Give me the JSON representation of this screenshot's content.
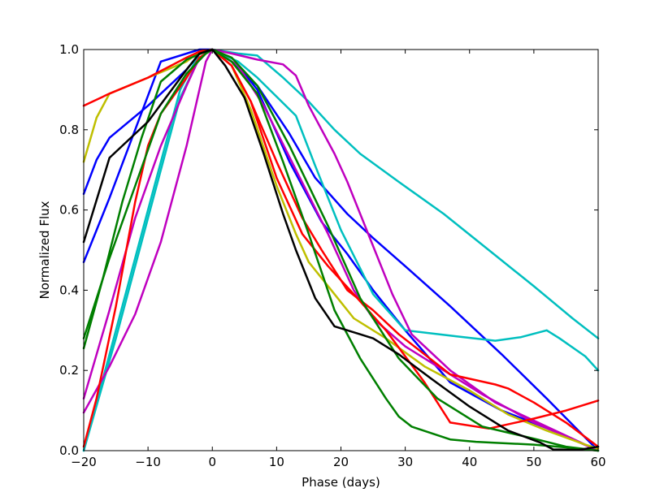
{
  "chart_data": {
    "type": "line",
    "title": "",
    "xlabel": "Phase (days)",
    "ylabel": "Normalized Flux",
    "xlim": [
      -20,
      60
    ],
    "ylim": [
      0.0,
      1.0
    ],
    "grid": false,
    "legend": "none",
    "x_ticks": [
      -20,
      -10,
      0,
      10,
      20,
      30,
      40,
      50,
      60
    ],
    "x_tick_labels": [
      "−20",
      "−10",
      "0",
      "10",
      "20",
      "30",
      "40",
      "50",
      "60"
    ],
    "y_ticks": [
      0.0,
      0.2,
      0.4,
      0.6,
      0.8,
      1.0
    ],
    "y_tick_labels": [
      "0.0",
      "0.2",
      "0.4",
      "0.6",
      "0.8",
      "1.0"
    ],
    "series": [
      {
        "color": "#0000ff",
        "x": [
          -20,
          -16,
          -8,
          -2,
          0,
          4,
          7,
          12,
          17,
          21,
          25,
          30,
          37,
          45,
          53,
          60
        ],
        "y": [
          0.47,
          0.63,
          0.97,
          1.0,
          1.0,
          0.96,
          0.9,
          0.72,
          0.57,
          0.49,
          0.4,
          0.3,
          0.17,
          0.1,
          0.05,
          0.0
        ]
      },
      {
        "color": "#0000ff",
        "x": [
          -20,
          -18,
          -16,
          -10,
          -4,
          -2,
          0,
          3,
          7,
          12,
          16,
          21,
          25,
          30,
          37,
          45,
          52,
          60
        ],
        "y": [
          0.64,
          0.725,
          0.78,
          0.86,
          0.95,
          0.99,
          1.0,
          0.97,
          0.91,
          0.79,
          0.68,
          0.59,
          0.53,
          0.46,
          0.36,
          0.24,
          0.13,
          0.0
        ]
      },
      {
        "color": "#00bfbf",
        "x": [
          -20,
          -15,
          -10,
          -5,
          -2,
          0,
          4,
          7,
          13,
          16,
          20,
          25,
          30,
          38,
          44,
          48,
          52,
          54,
          58,
          60
        ],
        "y": [
          0.0,
          0.3,
          0.6,
          0.9,
          0.99,
          1.0,
          0.97,
          0.93,
          0.835,
          0.71,
          0.55,
          0.39,
          0.3,
          0.285,
          0.274,
          0.283,
          0.3,
          0.28,
          0.235,
          0.2
        ]
      },
      {
        "color": "#00bfbf",
        "x": [
          -20,
          -15,
          -10,
          -5,
          -2,
          0,
          4,
          7,
          11,
          15,
          19,
          23,
          29,
          36,
          43,
          50,
          56,
          60
        ],
        "y": [
          0.0,
          0.28,
          0.58,
          0.88,
          0.98,
          1.0,
          0.99,
          0.985,
          0.93,
          0.87,
          0.8,
          0.74,
          0.67,
          0.59,
          0.5,
          0.41,
          0.33,
          0.28
        ]
      },
      {
        "color": "#bf00bf",
        "x": [
          -20,
          -16,
          -12,
          -8,
          -4,
          -1,
          0,
          3,
          7,
          11,
          13,
          15,
          19,
          21,
          25,
          28,
          31,
          37,
          44,
          52,
          60
        ],
        "y": [
          0.095,
          0.21,
          0.34,
          0.52,
          0.76,
          0.97,
          1.0,
          0.99,
          0.975,
          0.963,
          0.935,
          0.86,
          0.74,
          0.67,
          0.51,
          0.39,
          0.29,
          0.2,
          0.12,
          0.06,
          0.0
        ]
      },
      {
        "color": "#bf00bf",
        "x": [
          -20,
          -16,
          -12,
          -8,
          -4,
          -2,
          0,
          4,
          8,
          13,
          18,
          22,
          25,
          30,
          35,
          42,
          50,
          60
        ],
        "y": [
          0.13,
          0.35,
          0.58,
          0.76,
          0.91,
          0.98,
          1.0,
          0.96,
          0.86,
          0.7,
          0.54,
          0.4,
          0.33,
          0.26,
          0.21,
          0.14,
          0.07,
          0.0
        ]
      },
      {
        "color": "#bfbf00",
        "x": [
          -20,
          -18,
          -16,
          -10,
          -4,
          -2,
          0,
          3,
          6,
          10,
          13,
          15,
          20,
          22,
          27,
          33,
          40,
          46,
          52,
          58,
          60
        ],
        "y": [
          0.72,
          0.83,
          0.89,
          0.93,
          0.97,
          0.995,
          1.0,
          0.96,
          0.85,
          0.66,
          0.54,
          0.47,
          0.37,
          0.33,
          0.28,
          0.21,
          0.15,
          0.09,
          0.05,
          0.015,
          0.005
        ]
      },
      {
        "color": "#ff0000",
        "x": [
          -20,
          -16,
          -10,
          -4,
          -2,
          0,
          3,
          6,
          10,
          14,
          17,
          21,
          25,
          29,
          33,
          37,
          44,
          46,
          50,
          55,
          60
        ],
        "y": [
          0.86,
          0.89,
          0.93,
          0.98,
          0.995,
          1.0,
          0.96,
          0.87,
          0.72,
          0.58,
          0.5,
          0.4,
          0.35,
          0.29,
          0.24,
          0.19,
          0.165,
          0.155,
          0.12,
          0.07,
          0.01
        ]
      },
      {
        "color": "#ff0000",
        "x": [
          -20,
          -18,
          -15,
          -12,
          -10,
          -8,
          -4,
          -2,
          0,
          3,
          6,
          10,
          14,
          18,
          22,
          27,
          33,
          37,
          43,
          50,
          55,
          60
        ],
        "y": [
          0.01,
          0.13,
          0.36,
          0.62,
          0.76,
          0.84,
          0.93,
          0.98,
          1.0,
          0.96,
          0.87,
          0.68,
          0.54,
          0.46,
          0.39,
          0.3,
          0.17,
          0.07,
          0.055,
          0.08,
          0.1,
          0.125
        ]
      },
      {
        "color": "#007f00",
        "x": [
          -20,
          -16,
          -12,
          -8,
          -4,
          -1,
          0,
          3,
          7,
          11,
          15,
          19,
          23,
          27,
          29,
          31,
          37,
          41,
          50,
          55,
          60
        ],
        "y": [
          0.28,
          0.48,
          0.66,
          0.84,
          0.94,
          0.99,
          1.0,
          0.97,
          0.89,
          0.72,
          0.54,
          0.35,
          0.23,
          0.13,
          0.085,
          0.06,
          0.028,
          0.022,
          0.015,
          0.008,
          0.0
        ]
      },
      {
        "color": "#007f00",
        "x": [
          -20,
          -17,
          -14,
          -11,
          -8,
          -4,
          -1,
          0,
          3,
          7,
          12,
          18,
          23,
          29,
          35,
          42,
          50,
          55,
          60
        ],
        "y": [
          0.255,
          0.43,
          0.62,
          0.78,
          0.92,
          0.975,
          0.995,
          1.0,
          0.98,
          0.91,
          0.76,
          0.56,
          0.38,
          0.23,
          0.13,
          0.06,
          0.03,
          0.01,
          0.0
        ]
      },
      {
        "color": "#000000",
        "x": [
          -20,
          -16,
          -10,
          -4,
          -2,
          0,
          2,
          5,
          8,
          11,
          13,
          16,
          19,
          23,
          25,
          29,
          34,
          40,
          46,
          51,
          53,
          57,
          60
        ],
        "y": [
          0.52,
          0.73,
          0.82,
          0.95,
          0.99,
          1.0,
          0.96,
          0.88,
          0.74,
          0.59,
          0.5,
          0.38,
          0.31,
          0.29,
          0.28,
          0.24,
          0.18,
          0.11,
          0.05,
          0.02,
          0.003,
          0.002,
          0.01
        ]
      }
    ]
  }
}
